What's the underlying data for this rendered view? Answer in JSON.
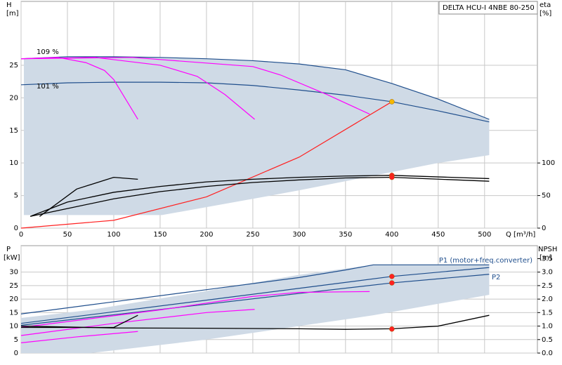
{
  "chart_data": [
    {
      "type": "line",
      "title": "DELTA HCU-I 4NBE 80-250",
      "y_label": "H",
      "y_unit": "[m]",
      "y2_label": "eta",
      "y2_unit": "[%]",
      "x_label": "Q [m³/h]",
      "xlim": [
        0,
        557
      ],
      "xticks": [
        0,
        50,
        100,
        150,
        200,
        250,
        300,
        350,
        400,
        450,
        500
      ],
      "ylim": [
        0,
        34.8
      ],
      "yticks": [
        0,
        5,
        10,
        15,
        20,
        25
      ],
      "y2lim": [
        0,
        348
      ],
      "y2ticks": [
        0,
        50,
        100
      ],
      "grid": true,
      "series": [
        {
          "style": "area",
          "color": "#cfdae6",
          "x": [
            3,
            152,
            250,
            300,
            350,
            400,
            450,
            505
          ],
          "upper": [
            26,
            26.2,
            25.7,
            25.2,
            24.3,
            22.2,
            19.8,
            16.7
          ],
          "lower": [
            2,
            2,
            4.5,
            5.8,
            7.2,
            8.6,
            10,
            11.2
          ]
        },
        {
          "style": "line",
          "name": "109 %",
          "color": "#1f4e8c",
          "x": [
            0,
            50,
            100,
            150,
            200,
            250,
            300,
            350,
            400,
            450,
            505
          ],
          "values": [
            26,
            26.3,
            26.3,
            26.2,
            26,
            25.7,
            25.2,
            24.3,
            22.2,
            19.8,
            16.7
          ]
        },
        {
          "style": "line",
          "name": "101 %",
          "color": "#1f4e8c",
          "x": [
            0,
            50,
            100,
            150,
            200,
            250,
            300,
            350,
            400,
            450,
            505
          ],
          "values": [
            22,
            22.3,
            22.4,
            22.4,
            22.3,
            21.9,
            21.2,
            20.4,
            19.4,
            18,
            16.3
          ]
        },
        {
          "style": "line",
          "color": "#ff00ff",
          "x": [
            0,
            40,
            70,
            90,
            100,
            126
          ],
          "values": [
            26,
            26.2,
            25.4,
            24.2,
            22.8,
            16.7
          ]
        },
        {
          "style": "line",
          "color": "#ff00ff",
          "x": [
            0,
            80,
            150,
            190,
            220,
            252
          ],
          "values": [
            26,
            26.2,
            25,
            23.3,
            20.5,
            16.7
          ]
        },
        {
          "style": "line",
          "color": "#ff00ff",
          "x": [
            0,
            120,
            250,
            280,
            330,
            376
          ],
          "values": [
            26,
            26.2,
            24.8,
            23.5,
            20.5,
            17.5
          ]
        },
        {
          "style": "line",
          "color": "#ff2020",
          "x": [
            0,
            100,
            200,
            300,
            400
          ],
          "values": [
            0,
            1.2,
            4.8,
            10.9,
            19.4
          ]
        },
        {
          "style": "line",
          "axis": "y2",
          "color": "#000000",
          "x": [
            10,
            50,
            100,
            150,
            200,
            250,
            300,
            350,
            400,
            505
          ],
          "values": [
            18,
            40,
            55,
            64,
            71,
            75,
            78,
            80,
            81,
            76
          ]
        },
        {
          "style": "line",
          "axis": "y2",
          "color": "#000000",
          "x": [
            10,
            50,
            100,
            150,
            200,
            250,
            300,
            350,
            400,
            505
          ],
          "values": [
            18,
            30,
            45,
            56,
            64,
            70,
            74,
            77,
            78,
            72
          ]
        },
        {
          "style": "line",
          "axis": "y2",
          "color": "#000000",
          "x": [
            20,
            60,
            100,
            126
          ],
          "values": [
            18,
            60,
            78,
            75
          ]
        },
        {
          "style": "marker",
          "color": "#ff2020",
          "x": [
            400,
            400
          ],
          "values": [
            81,
            78
          ],
          "axis": "y2"
        },
        {
          "style": "marker",
          "color": "#f5b800",
          "x": [
            400
          ],
          "values": [
            19.4
          ]
        }
      ]
    },
    {
      "type": "line",
      "y_label": "P",
      "y_unit": "[kW]",
      "y2_label": "NPSH",
      "y2_unit": "[m]",
      "xlim": [
        0,
        557
      ],
      "xticks": [
        0,
        50,
        100,
        150,
        200,
        250,
        300,
        350,
        400,
        450,
        500
      ],
      "ylim": [
        0,
        39.8
      ],
      "yticks": [
        0,
        5,
        10,
        15,
        20,
        25,
        30
      ],
      "y2lim": [
        0,
        3.98
      ],
      "y2ticks": [
        {
          "value": 0,
          "label": "0.0"
        },
        0.5,
        {
          "value": 1,
          "label": "1.0"
        },
        1.5,
        {
          "value": 2,
          "label": "2.0"
        },
        2.5,
        {
          "value": 3,
          "label": "3.0"
        },
        3.5
      ],
      "grid": true,
      "series": [
        {
          "style": "area",
          "color": "#cfdae6",
          "x": [
            0,
            75,
            200,
            300,
            380,
            505
          ],
          "upper": [
            13,
            16,
            23,
            29,
            32.7,
            32.7
          ],
          "lower": [
            0,
            0,
            5,
            10,
            14,
            21.6
          ]
        },
        {
          "style": "line",
          "color": "#1f4e8c",
          "x": [
            0,
            100,
            200,
            300,
            350,
            380,
            505
          ],
          "values": [
            14.5,
            19,
            23.5,
            28,
            30.8,
            32.7,
            32.7
          ]
        },
        {
          "style": "line",
          "name": "P1 (motor+freq.converter)",
          "color": "#1f4e8c",
          "x": [
            0,
            100,
            200,
            300,
            400,
            505
          ],
          "values": [
            11,
            15.3,
            19.6,
            24,
            28.4,
            31.7
          ]
        },
        {
          "style": "line",
          "name": "P2",
          "color": "#1f4e8c",
          "x": [
            0,
            100,
            200,
            300,
            400,
            505
          ],
          "values": [
            10.3,
            14.2,
            18.1,
            22.1,
            26,
            29.2
          ]
        },
        {
          "style": "line",
          "color": "#ff00ff",
          "x": [
            0,
            60,
            126
          ],
          "values": [
            3.8,
            6,
            8
          ]
        },
        {
          "style": "line",
          "color": "#ff00ff",
          "x": [
            0,
            100,
            200,
            252
          ],
          "values": [
            6.5,
            11,
            15,
            16.2
          ]
        },
        {
          "style": "line",
          "color": "#ff00ff",
          "x": [
            0,
            150,
            250,
            300,
            376
          ],
          "values": [
            9.5,
            16,
            21,
            22.5,
            22.8
          ]
        },
        {
          "style": "line",
          "axis": "y2",
          "color": "#000000",
          "x": [
            0,
            100,
            200,
            300,
            350,
            400,
            450,
            505
          ],
          "values": [
            1,
            0.93,
            0.92,
            0.9,
            0.88,
            0.9,
            1,
            1.4
          ]
        },
        {
          "style": "line",
          "axis": "y2",
          "color": "#000000",
          "x": [
            0,
            100,
            126
          ],
          "values": [
            0.95,
            0.95,
            1.4
          ]
        },
        {
          "style": "marker",
          "color": "#ff2020",
          "x": [
            400,
            400
          ],
          "values": [
            28.4,
            26
          ]
        },
        {
          "style": "marker",
          "axis": "y2",
          "color": "#ff2020",
          "x": [
            400
          ],
          "values": [
            0.89
          ]
        }
      ]
    }
  ]
}
